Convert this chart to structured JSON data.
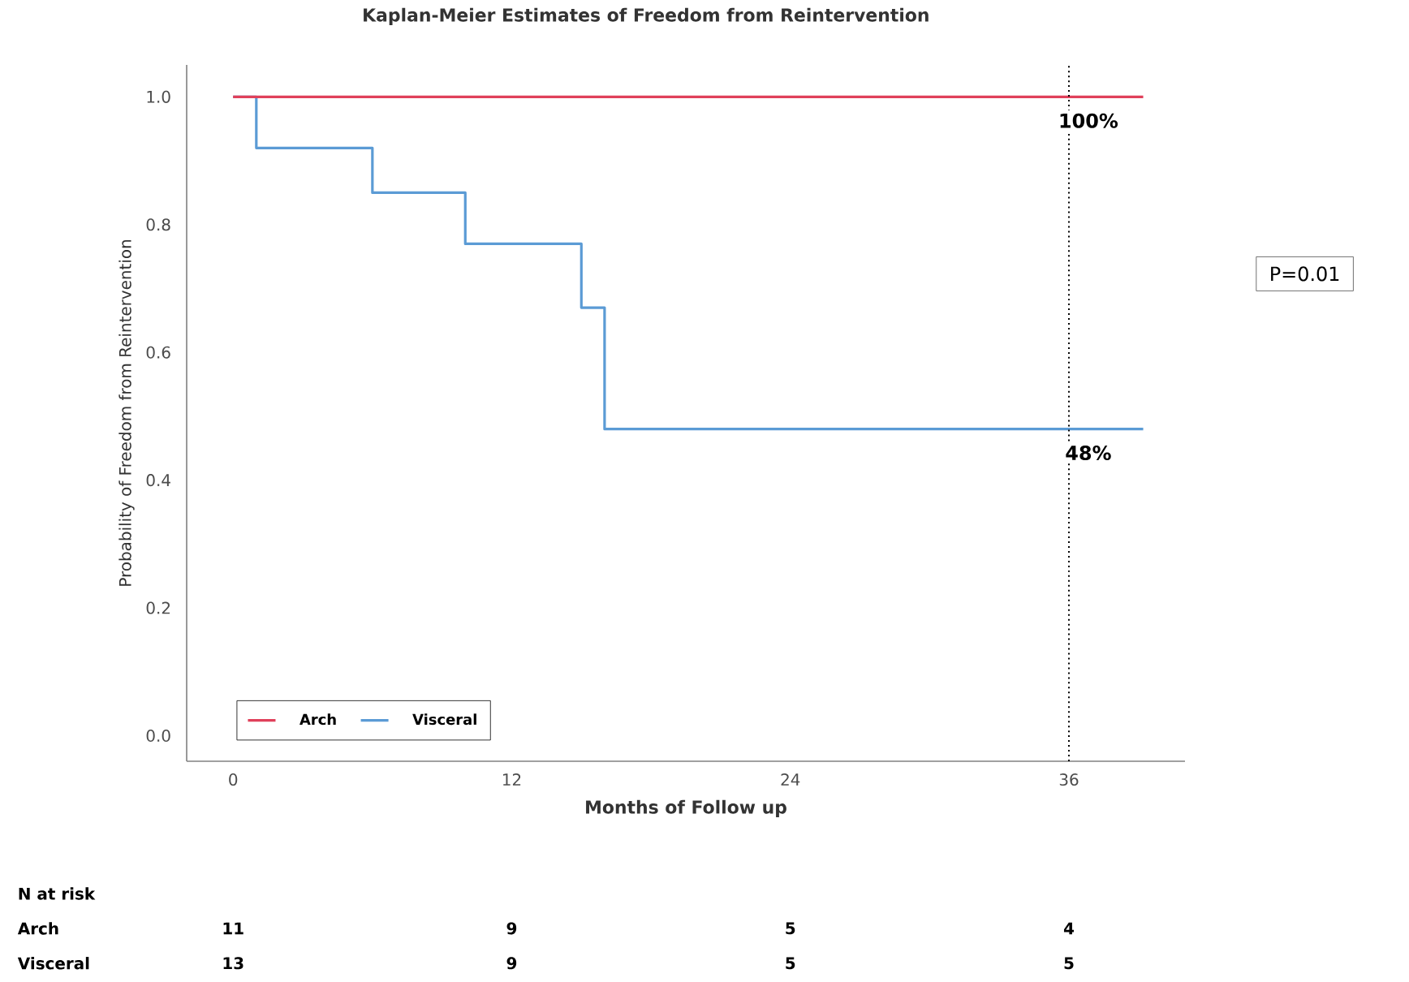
{
  "chart_data": {
    "type": "step",
    "title": "Kaplan-Meier Estimates of Freedom from Reintervention",
    "xlabel": "Months of Follow up",
    "ylabel": "Probability of Freedom from Reintervention",
    "xlim": [
      -2,
      41
    ],
    "ylim": [
      -0.04,
      1.05
    ],
    "xticks": [
      0,
      12,
      24,
      36
    ],
    "yticks": [
      {
        "value": 0,
        "label": "0.0"
      },
      {
        "value": 0.2,
        "label": "0.2"
      },
      {
        "value": 0.4,
        "label": "0.4"
      },
      {
        "value": 0.6,
        "label": "0.6"
      },
      {
        "value": 0.8,
        "label": "0.8"
      },
      {
        "value": 1.0,
        "label": "1.0"
      }
    ],
    "series": [
      {
        "name": "Arch",
        "color": "#e0405a",
        "x": [
          0,
          39.2
        ],
        "values": [
          1.0,
          1.0
        ]
      },
      {
        "name": "Visceral",
        "color": "#5b9bd5",
        "x": [
          0,
          1,
          6,
          10,
          15,
          16,
          39.2
        ],
        "values": [
          1.0,
          0.92,
          0.85,
          0.77,
          0.67,
          0.48,
          0.48
        ]
      }
    ],
    "ref_lines": [
      {
        "axis": "x",
        "value": 36,
        "label": null,
        "line_style": "dotted"
      }
    ],
    "annotations": [
      {
        "text": "100%",
        "x": 36,
        "y": 1.0
      },
      {
        "text": "48%",
        "x": 36,
        "y": 0.48
      },
      "P=0.01",
      "N at risk",
      "Arch",
      "11",
      "9",
      "5",
      "4",
      "Visceral",
      "13",
      "9",
      "5",
      "5"
    ],
    "legend": "bottom left",
    "grid": false,
    "line_style": "solid"
  }
}
